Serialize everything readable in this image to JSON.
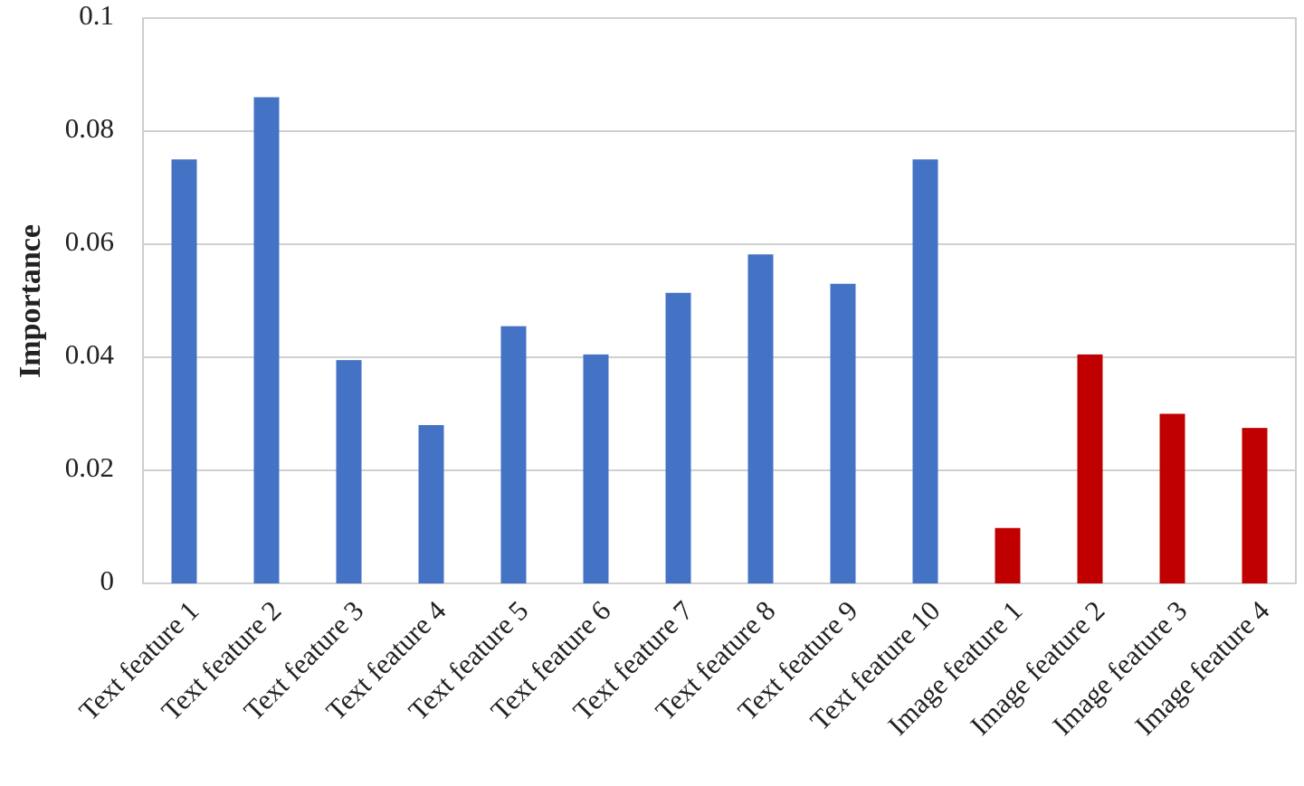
{
  "chart_data": {
    "type": "bar",
    "y_label": "Importance",
    "categories": [
      "Text feature 1",
      "Text feature 2",
      "Text feature 3",
      "Text feature 4",
      "Text feature 5",
      "Text feature 6",
      "Text feature 7",
      "Text feature 8",
      "Text feature 9",
      "Text feature 10",
      "Image feature 1",
      "Image feature 2",
      "Image feature 3",
      "Image feature 4"
    ],
    "values": [
      0.075,
      0.086,
      0.0395,
      0.028,
      0.0455,
      0.0405,
      0.0514,
      0.0582,
      0.053,
      0.075,
      0.0098,
      0.0405,
      0.03,
      0.0275
    ],
    "colors": [
      "#4472c4",
      "#4472c4",
      "#4472c4",
      "#4472c4",
      "#4472c4",
      "#4472c4",
      "#4472c4",
      "#4472c4",
      "#4472c4",
      "#4472c4",
      "#c00000",
      "#c00000",
      "#c00000",
      "#c00000"
    ],
    "ylim": [
      0,
      0.1
    ],
    "yticks": [
      0,
      0.02,
      0.04,
      0.06,
      0.08,
      0.1
    ],
    "grid": true
  }
}
